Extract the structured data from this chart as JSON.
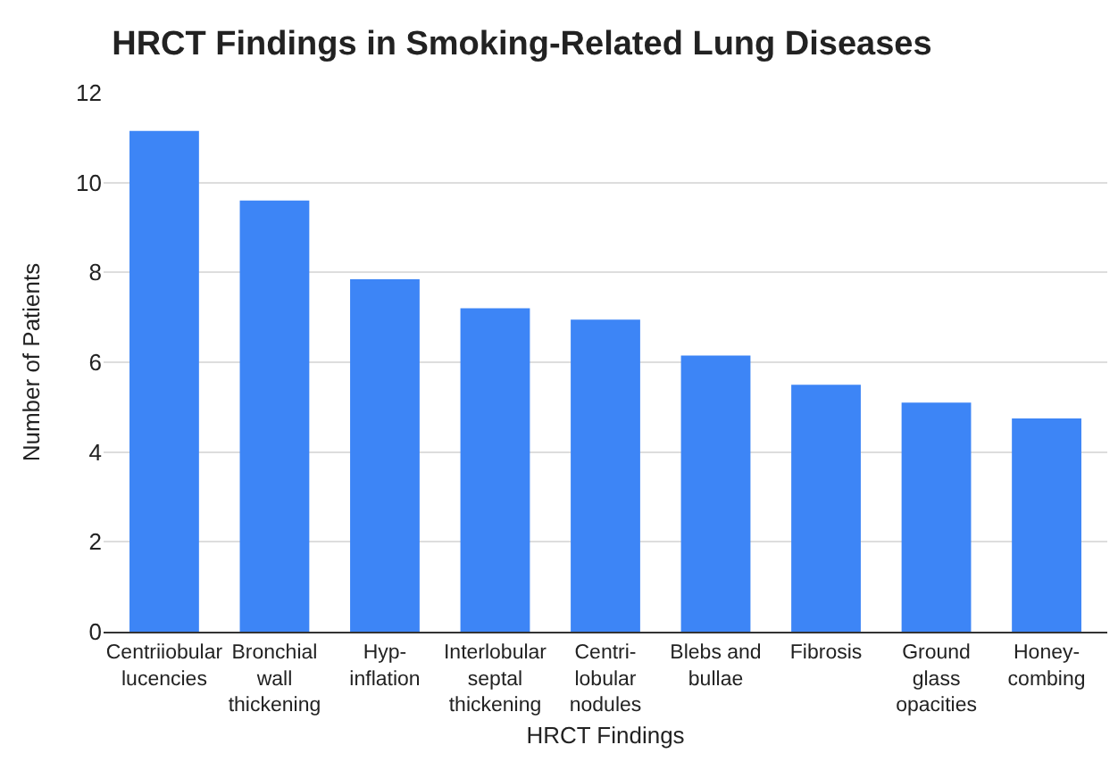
{
  "chart_data": {
    "type": "bar",
    "title": "HRCT Findings in Smoking-Related Lung Diseases",
    "xlabel": "HRCT Findings",
    "ylabel": "Number of Patients",
    "categories": [
      "Centriiobular\nlucencies",
      "Bronchial\nwall\nthickening",
      "Hyp-\ninflation",
      "Interlobular\nseptal\nthickening",
      "Centri-\nlobular\nnodules",
      "Blebs and\nbullae",
      "Fibrosis",
      "Ground\nglass\nopacities",
      "Honey-\ncombing"
    ],
    "values": [
      11.15,
      9.6,
      7.85,
      7.2,
      6.95,
      6.15,
      5.5,
      5.1,
      4.75
    ],
    "color": "#3d85f6",
    "ylim": [
      0,
      12
    ],
    "yticks": [
      0,
      2,
      4,
      6,
      8,
      10,
      12
    ],
    "grid": "y"
  }
}
